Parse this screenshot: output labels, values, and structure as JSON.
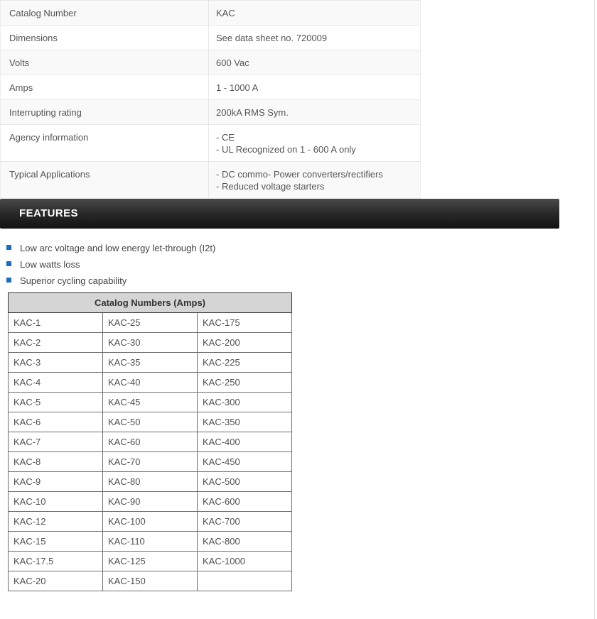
{
  "specs_table": {
    "rows": [
      {
        "label": "Catalog Number",
        "values": [
          "KAC"
        ]
      },
      {
        "label": "Dimensions",
        "values": [
          "See data sheet no. 720009"
        ]
      },
      {
        "label": "Volts",
        "values": [
          "600 Vac"
        ]
      },
      {
        "label": "Amps",
        "values": [
          "1 - 1000 A"
        ]
      },
      {
        "label": "Interrupting rating",
        "values": [
          "200kA RMS Sym."
        ]
      },
      {
        "label": "Agency information",
        "values": [
          "- CE",
          "- UL Recognized on 1 - 600 A only"
        ]
      },
      {
        "label": "Typical Applications",
        "values": [
          "- DC commo- Power converters/rectifiers",
          "- Reduced voltage starters"
        ]
      }
    ]
  },
  "features": {
    "heading": "FEATURES",
    "items": [
      "Low arc voltage and low energy let-through (I2t)",
      "Low watts loss",
      "Superior cycling capability"
    ]
  },
  "catalog_table": {
    "title": "Catalog Numbers (Amps)",
    "rows": [
      [
        "KAC-1",
        "KAC-25",
        "KAC-175"
      ],
      [
        "KAC-2",
        "KAC-30",
        "KAC-200"
      ],
      [
        "KAC-3",
        "KAC-35",
        "KAC-225"
      ],
      [
        "KAC-4",
        "KAC-40",
        "KAC-250"
      ],
      [
        "KAC-5",
        "KAC-45",
        "KAC-300"
      ],
      [
        "KAC-6",
        "KAC-50",
        "KAC-350"
      ],
      [
        "KAC-7",
        "KAC-60",
        "KAC-400"
      ],
      [
        "KAC-8",
        "KAC-70",
        "KAC-450"
      ],
      [
        "KAC-9",
        "KAC-80",
        "KAC-500"
      ],
      [
        "KAC-10",
        "KAC-90",
        "KAC-600"
      ],
      [
        "KAC-12",
        "KAC-100",
        "KAC-700"
      ],
      [
        "KAC-15",
        "KAC-110",
        "KAC-800"
      ],
      [
        "KAC-17.5",
        "KAC-125",
        "KAC-1000"
      ],
      [
        "KAC-20",
        "KAC-150",
        ""
      ]
    ]
  },
  "colors": {
    "bullet": "#1e6bb8",
    "banner-top": "#4a4a4a",
    "banner-bottom": "#121212",
    "table-header-bg": "#d5d5d5",
    "row-alt": "#f9f9f9"
  }
}
